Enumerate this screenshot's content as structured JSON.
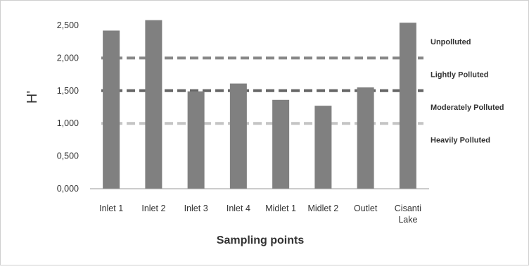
{
  "chart_data": {
    "type": "bar",
    "title": "",
    "xlabel": "Sampling points",
    "ylabel": "H'",
    "ylim": [
      0,
      2.5
    ],
    "yticks": [
      0,
      0.5,
      1.0,
      1.5,
      2.0,
      2.5
    ],
    "ytick_labels": [
      "0,000",
      "0,500",
      "1,000",
      "1,500",
      "2,000",
      "2,500"
    ],
    "categories": [
      {
        "label": [
          "Inlet 1"
        ],
        "value": 2.42
      },
      {
        "label": [
          "Inlet 2"
        ],
        "value": 2.58
      },
      {
        "label": [
          "Inlet 3"
        ],
        "value": 1.49
      },
      {
        "label": [
          "Inlet 4"
        ],
        "value": 1.61
      },
      {
        "label": [
          "Midlet 1"
        ],
        "value": 1.36
      },
      {
        "label": [
          "Midlet 2"
        ],
        "value": 1.27
      },
      {
        "label": [
          "Outlet"
        ],
        "value": 1.55
      },
      {
        "label": [
          "Cisanti",
          "Lake"
        ],
        "value": 2.54
      }
    ],
    "thresholds": [
      {
        "value": 2.0,
        "color": "#888888"
      },
      {
        "value": 1.5,
        "color": "#666666"
      },
      {
        "value": 1.0,
        "color": "#c4c4c4"
      }
    ],
    "zone_labels": [
      "Unpolluted",
      "Lightly Polluted",
      "Moderately Polluted",
      "Heavily Polluted"
    ],
    "bar_color": "#808080",
    "grid": false,
    "legend": "none"
  }
}
